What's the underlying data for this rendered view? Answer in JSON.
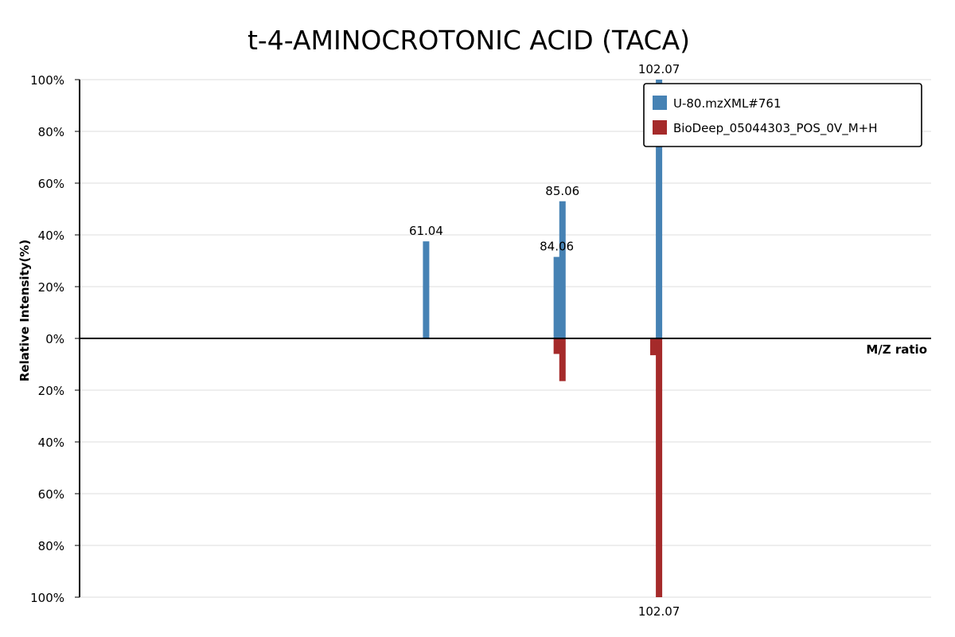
{
  "chart_data": {
    "type": "bar",
    "title": "t-4-AMINOCROTONIC ACID (TACA)",
    "xlabel": "M/Z ratio",
    "ylabel": "Relative Intensity(%)",
    "ylim": [
      -100,
      100
    ],
    "xlim": [
      0,
      150
    ],
    "yticks": [
      {
        "value": 100,
        "label": "100%"
      },
      {
        "value": 80,
        "label": "80%"
      },
      {
        "value": 60,
        "label": "60%"
      },
      {
        "value": 40,
        "label": "40%"
      },
      {
        "value": 20,
        "label": "20%"
      },
      {
        "value": 0,
        "label": "0%"
      },
      {
        "value": -20,
        "label": "20%"
      },
      {
        "value": -40,
        "label": "40%"
      },
      {
        "value": -60,
        "label": "60%"
      },
      {
        "value": -80,
        "label": "80%"
      },
      {
        "value": -100,
        "label": "100%"
      }
    ],
    "series": [
      {
        "name": "U-80.mzXML#761",
        "color": "#4682b4",
        "direction": "up",
        "points": [
          {
            "mz": 61.04,
            "intensity": 37.5,
            "label": "61.04"
          },
          {
            "mz": 84.06,
            "intensity": 31.5,
            "label": "84.06"
          },
          {
            "mz": 85.06,
            "intensity": 53.0,
            "label": "85.06"
          },
          {
            "mz": 102.07,
            "intensity": 100,
            "label": "102.07"
          }
        ]
      },
      {
        "name": "BioDeep_05044303_POS_0V_M+H",
        "color": "#a52a2a",
        "direction": "down",
        "points": [
          {
            "mz": 84.06,
            "intensity": 6.0,
            "label": ""
          },
          {
            "mz": 85.06,
            "intensity": 16.5,
            "label": ""
          },
          {
            "mz": 101.07,
            "intensity": 6.5,
            "label": ""
          },
          {
            "mz": 102.07,
            "intensity": 100,
            "label": "102.07"
          }
        ]
      }
    ],
    "legend": {
      "position": "top-right"
    }
  }
}
